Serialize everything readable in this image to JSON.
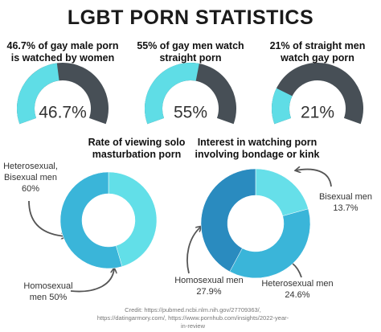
{
  "title": "LGBT PORN STATISTICS",
  "chart_data": [
    {
      "type": "gauge",
      "title": "46.7% of gay male porn is watched by women",
      "values": [
        46.7
      ],
      "value_labels": [
        "46.7%"
      ],
      "ylim": [
        0,
        100
      ],
      "color": "#5fdde6",
      "track_color": "#474f56"
    },
    {
      "type": "gauge",
      "title": "55% of gay men watch straight porn",
      "values": [
        55
      ],
      "value_labels": [
        "55%"
      ],
      "ylim": [
        0,
        100
      ],
      "color": "#5fdde6",
      "track_color": "#474f56"
    },
    {
      "type": "gauge",
      "title": "21% of straight men watch gay porn",
      "values": [
        21
      ],
      "value_labels": [
        "21%"
      ],
      "ylim": [
        0,
        100
      ],
      "color": "#5fdde6",
      "track_color": "#474f56"
    },
    {
      "type": "donut",
      "title": "Rate of viewing solo masturbation porn",
      "categories": [
        "Homosexual men",
        "Heterosexual, Bisexual men"
      ],
      "values": [
        50,
        60
      ],
      "value_labels": [
        "50%",
        "60%"
      ],
      "colors": [
        "#62dfe8",
        "#3ab5d9"
      ]
    },
    {
      "type": "donut",
      "title": "Interest in watching porn involving bondage or kink",
      "categories": [
        "Bisexual men",
        "Heterosexual men",
        "Homosexual men"
      ],
      "values": [
        13.7,
        24.6,
        27.9
      ],
      "value_labels": [
        "13.7%",
        "24.6%",
        "27.9%"
      ],
      "colors": [
        "#66dfe9",
        "#3ab5d9",
        "#2a8bbf"
      ]
    }
  ],
  "credit": "Credit: https://pubmed.ncbi.nlm.nih.gov/27709363/, https://datingarmory.com/, https://www.pornhub.com/insights/2022-year-in-review"
}
